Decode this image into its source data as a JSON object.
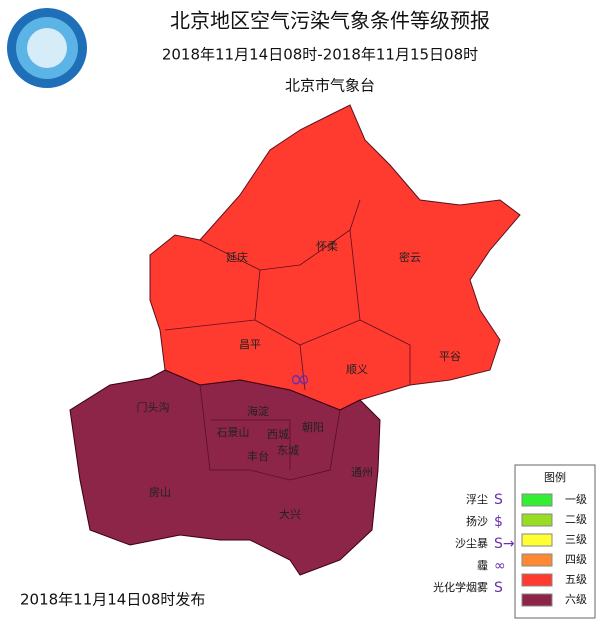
{
  "header": {
    "title": "北京地区空气污染气象条件等级预报",
    "period": "2018年11月14日08时-2018年11月15日08时",
    "issuer": "北京市气象台"
  },
  "districts": [
    {
      "name": "延庆"
    },
    {
      "name": "怀柔"
    },
    {
      "name": "密云"
    },
    {
      "name": "昌平"
    },
    {
      "name": "顺义"
    },
    {
      "name": "平谷"
    },
    {
      "name": "门头沟"
    },
    {
      "name": "海淀"
    },
    {
      "name": "石景山"
    },
    {
      "name": "西城"
    },
    {
      "name": "朝阳"
    },
    {
      "name": "东城"
    },
    {
      "name": "丰台"
    },
    {
      "name": "通州"
    },
    {
      "name": "房山"
    },
    {
      "name": "大兴"
    }
  ],
  "legend": {
    "title": "图例",
    "symbols": [
      {
        "label": "浮尘",
        "symbol": "S"
      },
      {
        "label": "扬沙",
        "symbol": "$"
      },
      {
        "label": "沙尘暴",
        "symbol": "S→"
      },
      {
        "label": "霾",
        "symbol": "∞"
      },
      {
        "label": "光化学烟雾",
        "symbol": "S"
      }
    ],
    "levels": [
      {
        "label": "一级",
        "color": "#33ee33"
      },
      {
        "label": "二级",
        "color": "#99dd22"
      },
      {
        "label": "三级",
        "color": "#ffff33"
      },
      {
        "label": "四级",
        "color": "#ff8833"
      },
      {
        "label": "五级",
        "color": "#ff3b30"
      },
      {
        "label": "六级",
        "color": "#8c2547"
      }
    ]
  },
  "footer": {
    "published": "2018年11月14日08时发布"
  }
}
